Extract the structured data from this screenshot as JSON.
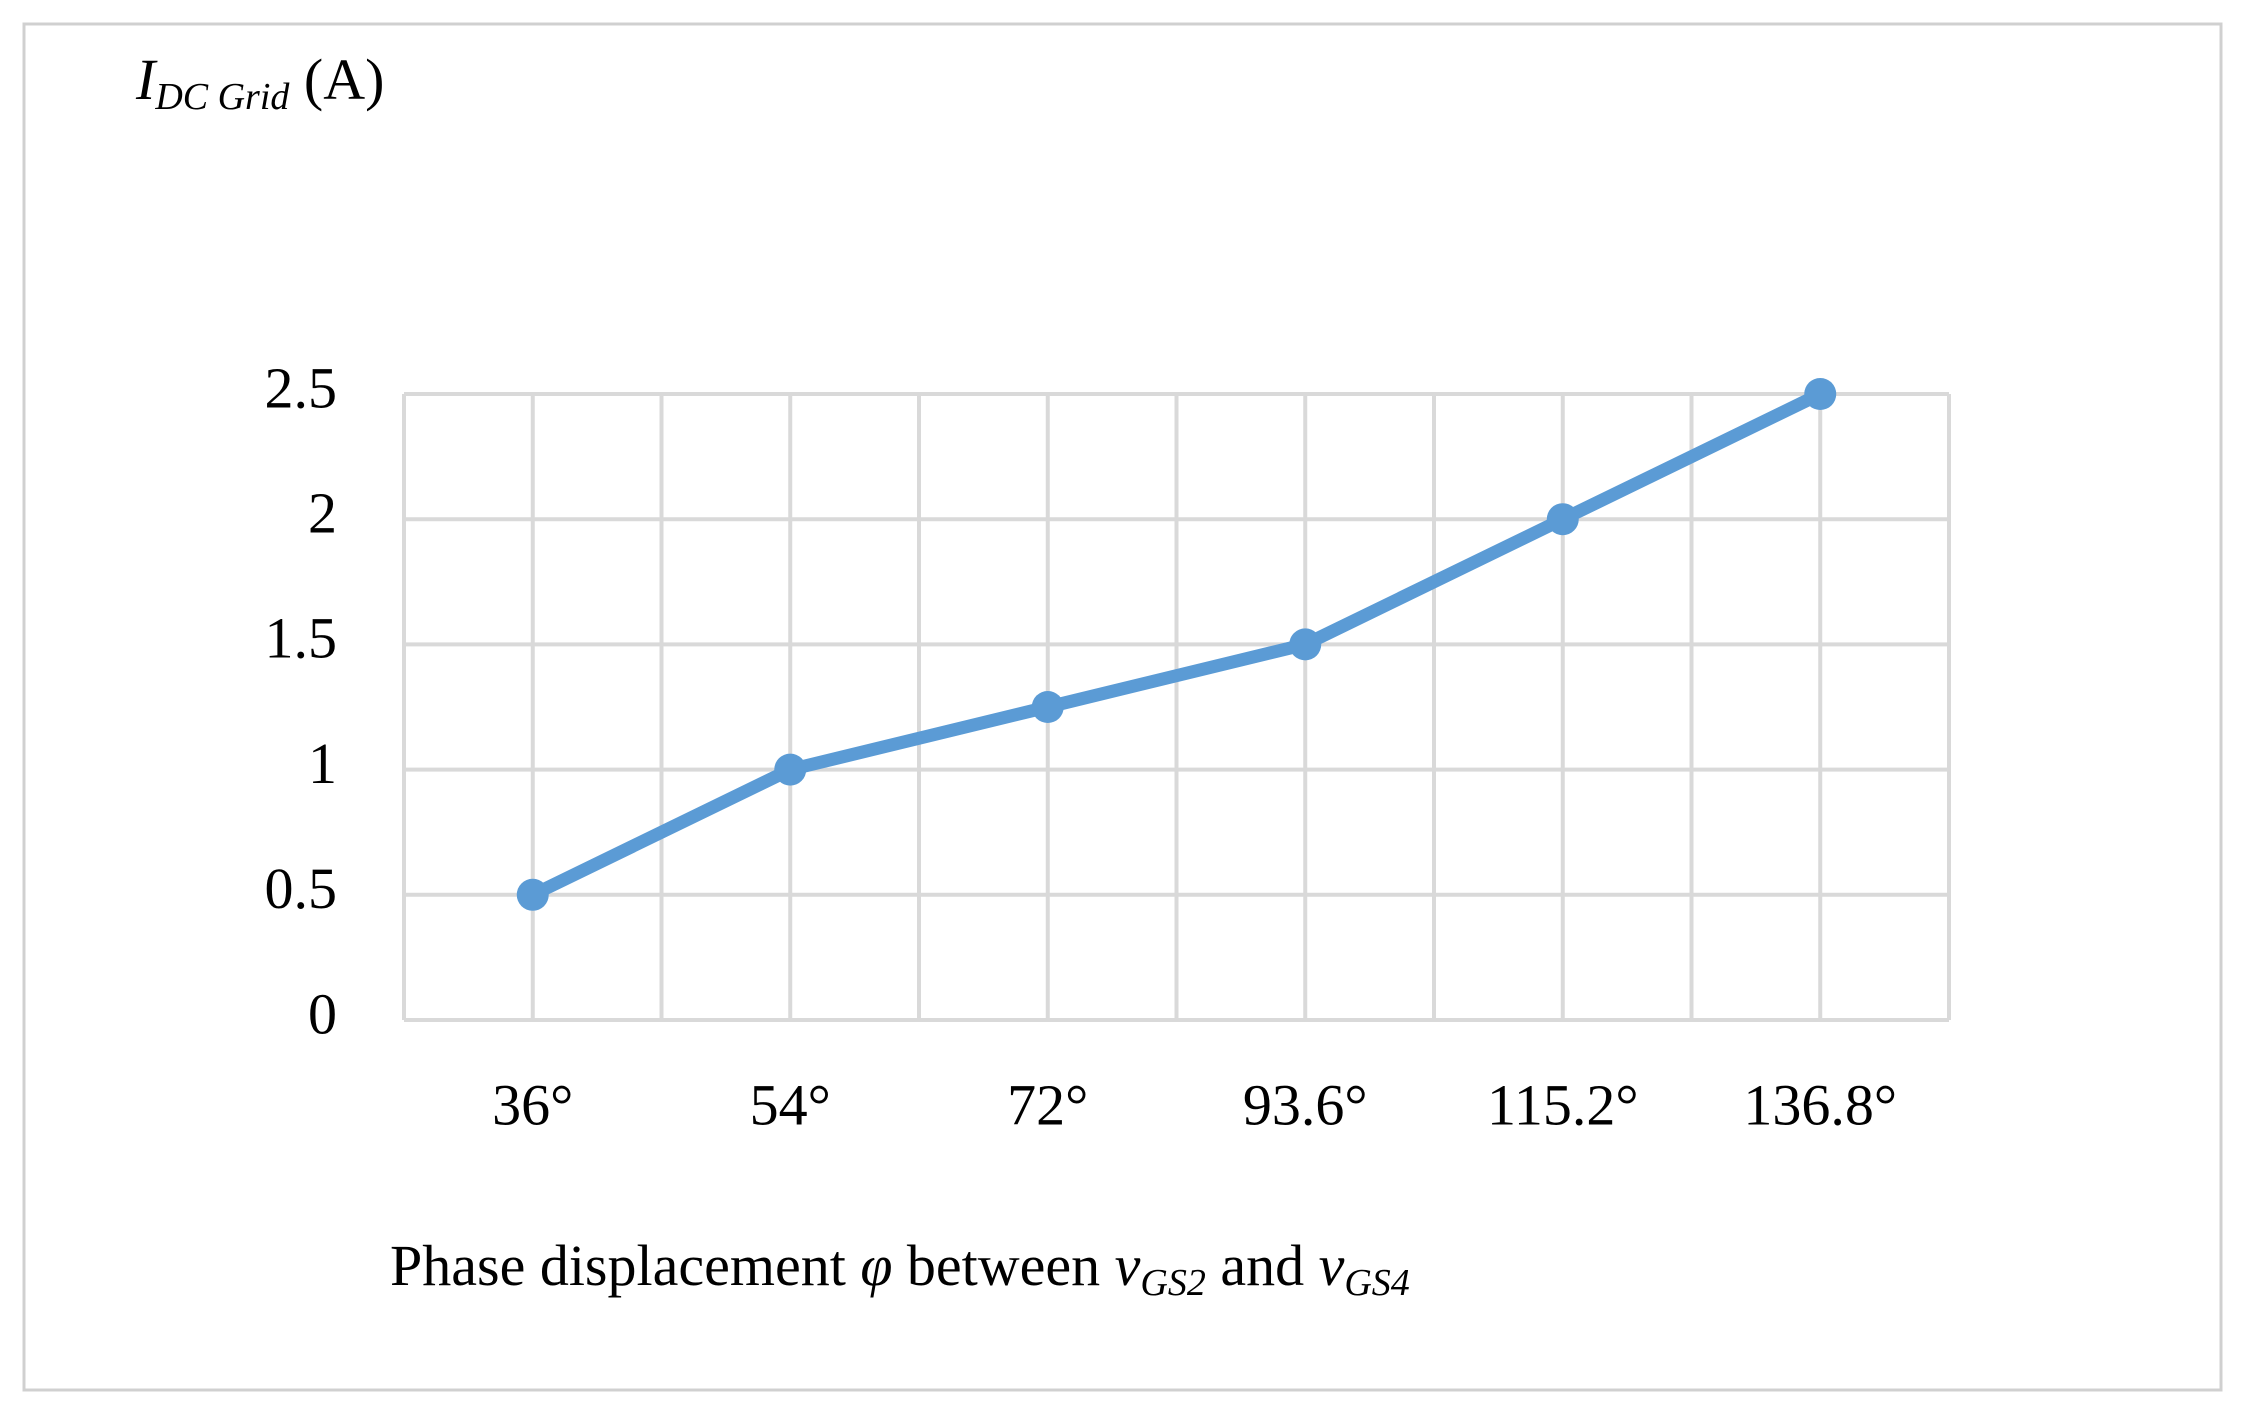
{
  "chart_data": {
    "type": "line",
    "ylabel": [
      "I",
      "DC Grid",
      " (A)"
    ],
    "xlabel": [
      "Phase displacement ",
      "φ",
      " between ",
      "v",
      "GS2",
      " and ",
      "v",
      "GS4"
    ],
    "categories": [
      "36°",
      "54°",
      "72°",
      "93.6°",
      "115.2°",
      "136.8°"
    ],
    "values": [
      0.5,
      1,
      1.25,
      1.5,
      2,
      2.5
    ],
    "color": "#5b9bd5",
    "ylim": [
      0,
      2.5
    ],
    "yticks": [
      0,
      0.5,
      1,
      1.5,
      2,
      2.5
    ],
    "grid": true
  }
}
